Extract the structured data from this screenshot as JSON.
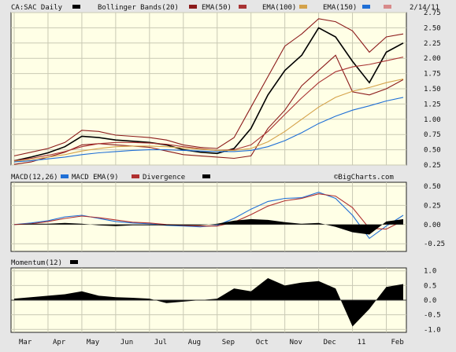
{
  "header": {
    "symbol": "CA:SAC Daily",
    "bollinger_label": "Bollinger Bands(20)",
    "ema50_label": "EMA(50)",
    "ema100_label": "EMA(100)",
    "ema150_label": "EMA(150)",
    "date": "2/14/11"
  },
  "colors": {
    "price": "#000000",
    "bollinger": "#8b1a1a",
    "ema50": "#a83232",
    "ema100": "#d4a24a",
    "ema150": "#1f6fd6",
    "macd": "#1f6fd6",
    "macd_ema": "#b03030",
    "divergence": "#000000",
    "momentum": "#000000",
    "panel_bg": "#ffffe6",
    "page_bg": "#e6e6e6"
  },
  "macd_panel": {
    "macd_label": "MACD(12,26)",
    "macd_ema_label": "MACD EMA(9)",
    "divergence_label": "Divergence",
    "watermark": "©BigCharts.com"
  },
  "momentum_panel": {
    "label": "Momentum(12)"
  },
  "x_axis": {
    "months": [
      "Mar",
      "Apr",
      "May",
      "Jun",
      "Jul",
      "Aug",
      "Sep",
      "Oct",
      "Nov",
      "Dec",
      "11",
      "Feb"
    ]
  },
  "chart_data": [
    {
      "type": "line",
      "x": [
        "Mar",
        "",
        "Apr",
        "",
        "May",
        "",
        "Jun",
        "",
        "Jul",
        "",
        "Aug",
        "",
        "Sep",
        "",
        "Oct",
        "",
        "Nov",
        "",
        "Dec",
        "",
        "11",
        "",
        "Feb",
        ""
      ],
      "series": [
        {
          "name": "CA:SAC Daily",
          "values": [
            0.32,
            0.38,
            0.45,
            0.55,
            0.72,
            0.7,
            0.66,
            0.64,
            0.62,
            0.58,
            0.5,
            0.46,
            0.44,
            0.52,
            0.85,
            1.4,
            1.8,
            2.05,
            2.5,
            2.35,
            1.95,
            1.6,
            2.1,
            2.25
          ]
        },
        {
          "name": "Bollinger Bands(20) upper",
          "values": [
            0.4,
            0.46,
            0.52,
            0.62,
            0.82,
            0.8,
            0.74,
            0.72,
            0.7,
            0.66,
            0.58,
            0.54,
            0.52,
            0.7,
            1.2,
            1.7,
            2.2,
            2.4,
            2.65,
            2.6,
            2.45,
            2.1,
            2.35,
            2.4
          ]
        },
        {
          "name": "Bollinger Bands(20) lower",
          "values": [
            0.26,
            0.3,
            0.38,
            0.46,
            0.58,
            0.6,
            0.58,
            0.56,
            0.54,
            0.48,
            0.42,
            0.4,
            0.38,
            0.36,
            0.4,
            0.85,
            1.15,
            1.55,
            1.8,
            2.05,
            1.45,
            1.4,
            1.5,
            1.65
          ]
        },
        {
          "name": "EMA(50)",
          "values": [
            0.32,
            0.36,
            0.41,
            0.47,
            0.55,
            0.6,
            0.62,
            0.62,
            0.61,
            0.59,
            0.55,
            0.52,
            0.49,
            0.5,
            0.58,
            0.8,
            1.08,
            1.35,
            1.6,
            1.78,
            1.86,
            1.9,
            1.96,
            2.02
          ]
        },
        {
          "name": "EMA(100)",
          "values": [
            0.31,
            0.34,
            0.38,
            0.42,
            0.48,
            0.52,
            0.55,
            0.56,
            0.56,
            0.55,
            0.53,
            0.51,
            0.49,
            0.49,
            0.52,
            0.63,
            0.8,
            1.0,
            1.2,
            1.36,
            1.46,
            1.52,
            1.6,
            1.66
          ]
        },
        {
          "name": "EMA(150)",
          "values": [
            0.3,
            0.32,
            0.35,
            0.38,
            0.42,
            0.45,
            0.47,
            0.49,
            0.5,
            0.5,
            0.49,
            0.48,
            0.47,
            0.47,
            0.49,
            0.55,
            0.65,
            0.78,
            0.93,
            1.05,
            1.15,
            1.22,
            1.3,
            1.36
          ]
        }
      ],
      "ylim": [
        0.25,
        2.75
      ],
      "yticks": [
        "0.25",
        "0.50",
        "0.75",
        "1.00",
        "1.25",
        "1.50",
        "1.75",
        "2.00",
        "2.25",
        "2.50",
        "2.75"
      ],
      "grid": true,
      "legend": "top"
    },
    {
      "type": "line",
      "x": [
        "Mar",
        "",
        "Apr",
        "",
        "May",
        "",
        "Jun",
        "",
        "Jul",
        "",
        "Aug",
        "",
        "Sep",
        "",
        "Oct",
        "",
        "Nov",
        "",
        "Dec",
        "",
        "11",
        "",
        "Feb",
        ""
      ],
      "series": [
        {
          "name": "MACD(12,26)",
          "values": [
            0.0,
            0.02,
            0.05,
            0.1,
            0.12,
            0.08,
            0.04,
            0.02,
            0.01,
            -0.01,
            -0.02,
            -0.03,
            -0.01,
            0.08,
            0.2,
            0.3,
            0.34,
            0.35,
            0.42,
            0.34,
            0.12,
            -0.18,
            -0.02,
            0.12
          ]
        },
        {
          "name": "MACD EMA(9)",
          "values": [
            0.0,
            0.01,
            0.04,
            0.08,
            0.11,
            0.09,
            0.06,
            0.03,
            0.02,
            0.0,
            -0.01,
            -0.02,
            -0.02,
            0.03,
            0.13,
            0.24,
            0.31,
            0.34,
            0.4,
            0.37,
            0.22,
            -0.05,
            -0.06,
            0.05
          ]
        },
        {
          "name": "Divergence",
          "values": [
            0.0,
            0.01,
            0.01,
            0.02,
            0.01,
            -0.01,
            -0.02,
            -0.01,
            -0.01,
            -0.01,
            -0.01,
            -0.01,
            0.01,
            0.05,
            0.07,
            0.06,
            0.03,
            0.01,
            0.02,
            -0.03,
            -0.1,
            -0.13,
            0.04,
            0.07
          ]
        }
      ],
      "ylim": [
        -0.35,
        0.55
      ],
      "yticks": [
        "0.50",
        "0.25",
        "0.00",
        "-0.25"
      ],
      "grid": true,
      "legend": "top"
    },
    {
      "type": "area",
      "x": [
        "Mar",
        "",
        "Apr",
        "",
        "May",
        "",
        "Jun",
        "",
        "Jul",
        "",
        "Aug",
        "",
        "Sep",
        "",
        "Oct",
        "",
        "Nov",
        "",
        "Dec",
        "",
        "11",
        "",
        "Feb",
        ""
      ],
      "series": [
        {
          "name": "Momentum(12)",
          "values": [
            0.05,
            0.1,
            0.15,
            0.2,
            0.3,
            0.15,
            0.1,
            0.08,
            0.05,
            -0.1,
            -0.05,
            0.0,
            0.05,
            0.4,
            0.3,
            0.75,
            0.5,
            0.6,
            0.65,
            0.4,
            -0.9,
            -0.3,
            0.45,
            0.55
          ]
        }
      ],
      "ylim": [
        -1.1,
        1.1
      ],
      "yticks": [
        "1.0",
        "0.5",
        "0.0",
        "-0.5",
        "-1.0"
      ],
      "grid": true,
      "legend": "top"
    }
  ]
}
